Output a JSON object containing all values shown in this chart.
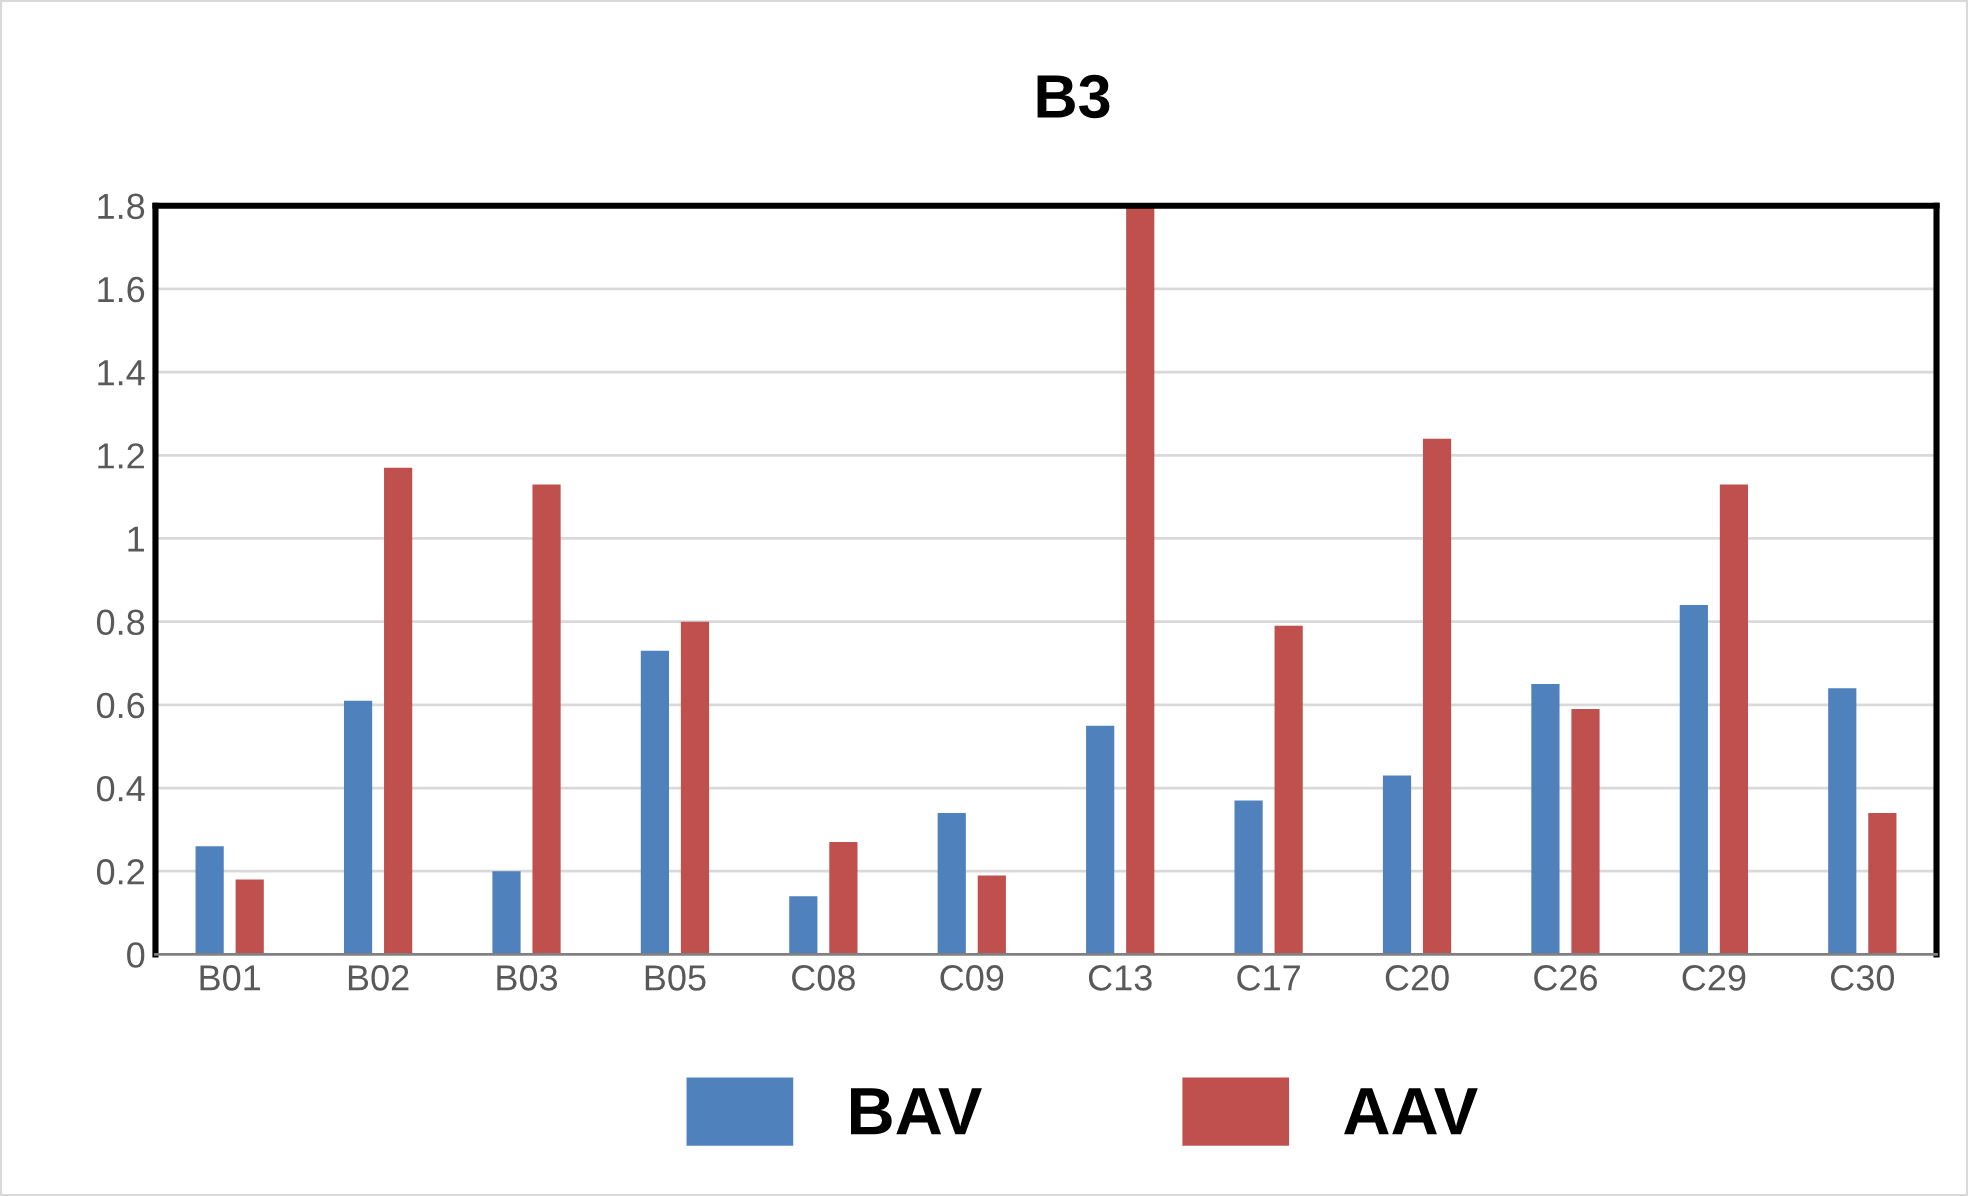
{
  "chart_data": {
    "type": "bar",
    "title": "B3",
    "categories": [
      "B01",
      "B02",
      "B03",
      "B05",
      "C08",
      "C09",
      "C13",
      "C17",
      "C20",
      "C26",
      "C29",
      "C30"
    ],
    "series": [
      {
        "name": "BAV",
        "color": "#4f81bd",
        "values": [
          0.26,
          0.61,
          0.2,
          0.73,
          0.14,
          0.34,
          0.55,
          0.37,
          0.43,
          0.65,
          0.84,
          0.64
        ]
      },
      {
        "name": "AAV",
        "color": "#c0504d",
        "values": [
          0.18,
          1.17,
          1.13,
          0.8,
          0.27,
          0.19,
          1.8,
          0.79,
          1.24,
          0.59,
          1.13,
          0.34
        ]
      }
    ],
    "ylim": [
      0,
      1.8
    ],
    "yticks": [
      0,
      0.2,
      0.4,
      0.6,
      0.8,
      1,
      1.2,
      1.4,
      1.6,
      1.8
    ],
    "grid": "y",
    "legend": "bottom"
  }
}
